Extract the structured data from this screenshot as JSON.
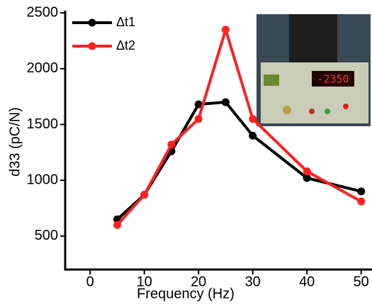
{
  "chart_data": {
    "type": "line",
    "x_label": "Frequency (Hz)",
    "y_label": "d33 (pC/N)",
    "x": [
      5,
      10,
      15,
      20,
      25,
      30,
      40,
      50
    ],
    "series": [
      {
        "name": "Δt1",
        "color": "#000000",
        "values": [
          650,
          870,
          1260,
          1680,
          1700,
          1400,
          1020,
          900
        ]
      },
      {
        "name": "Δt2",
        "color": "#ff2020",
        "values": [
          600,
          870,
          1320,
          1550,
          2350,
          1550,
          1080,
          810
        ]
      }
    ],
    "xlim": [
      -4.6,
      52
    ],
    "xticks": [
      0,
      10,
      20,
      30,
      40,
      50
    ],
    "ylim": [
      200,
      2520
    ],
    "yticks": [
      500,
      1000,
      1500,
      2000,
      2500
    ],
    "legend": "upper-left",
    "inset_display": "-2350"
  }
}
